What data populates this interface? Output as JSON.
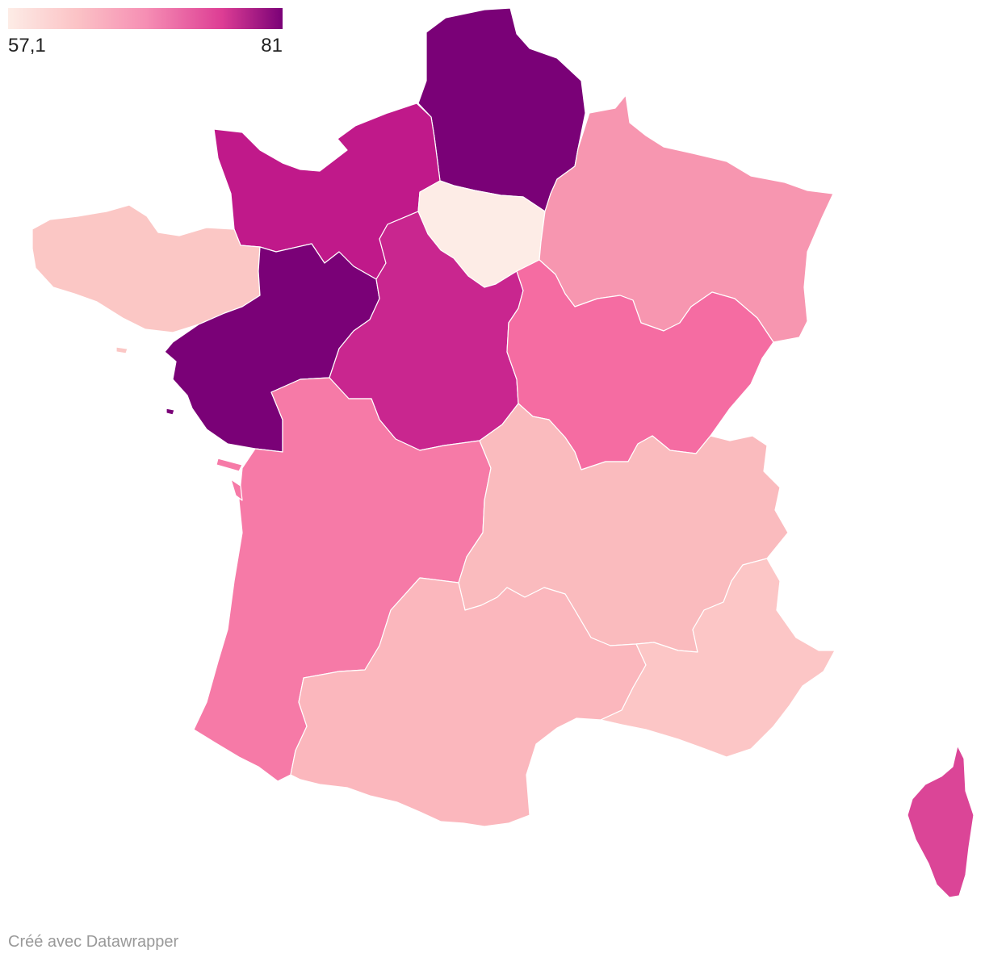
{
  "legend": {
    "min_label": "57,1",
    "max_label": "81",
    "min_value": 57.1,
    "max_value": 81,
    "gradient_colors": [
      "#fdece6",
      "#fbc3c6",
      "#f68fb4",
      "#dd3d94",
      "#7a0177"
    ]
  },
  "regions": [
    {
      "id": "hauts-de-france",
      "color": "#7a0177"
    },
    {
      "id": "normandie",
      "color": "#c0198a"
    },
    {
      "id": "ile-de-france",
      "color": "#fdece6"
    },
    {
      "id": "grand-est",
      "color": "#f796b0"
    },
    {
      "id": "bretagne",
      "color": "#fbc7c5"
    },
    {
      "id": "pays-de-la-loire",
      "color": "#7a0177"
    },
    {
      "id": "centre-val-de-loire",
      "color": "#c9268f"
    },
    {
      "id": "bourgogne-franche-comte",
      "color": "#f56ca2"
    },
    {
      "id": "nouvelle-aquitaine",
      "color": "#f67aa7"
    },
    {
      "id": "auvergne-rhone-alpes",
      "color": "#fabbbe"
    },
    {
      "id": "occitanie",
      "color": "#fbb7bd"
    },
    {
      "id": "provence-alpes-cote-d-azur",
      "color": "#fcc6c6"
    },
    {
      "id": "corse",
      "color": "#db4597"
    }
  ],
  "credit": "Créé avec Datawrapper"
}
